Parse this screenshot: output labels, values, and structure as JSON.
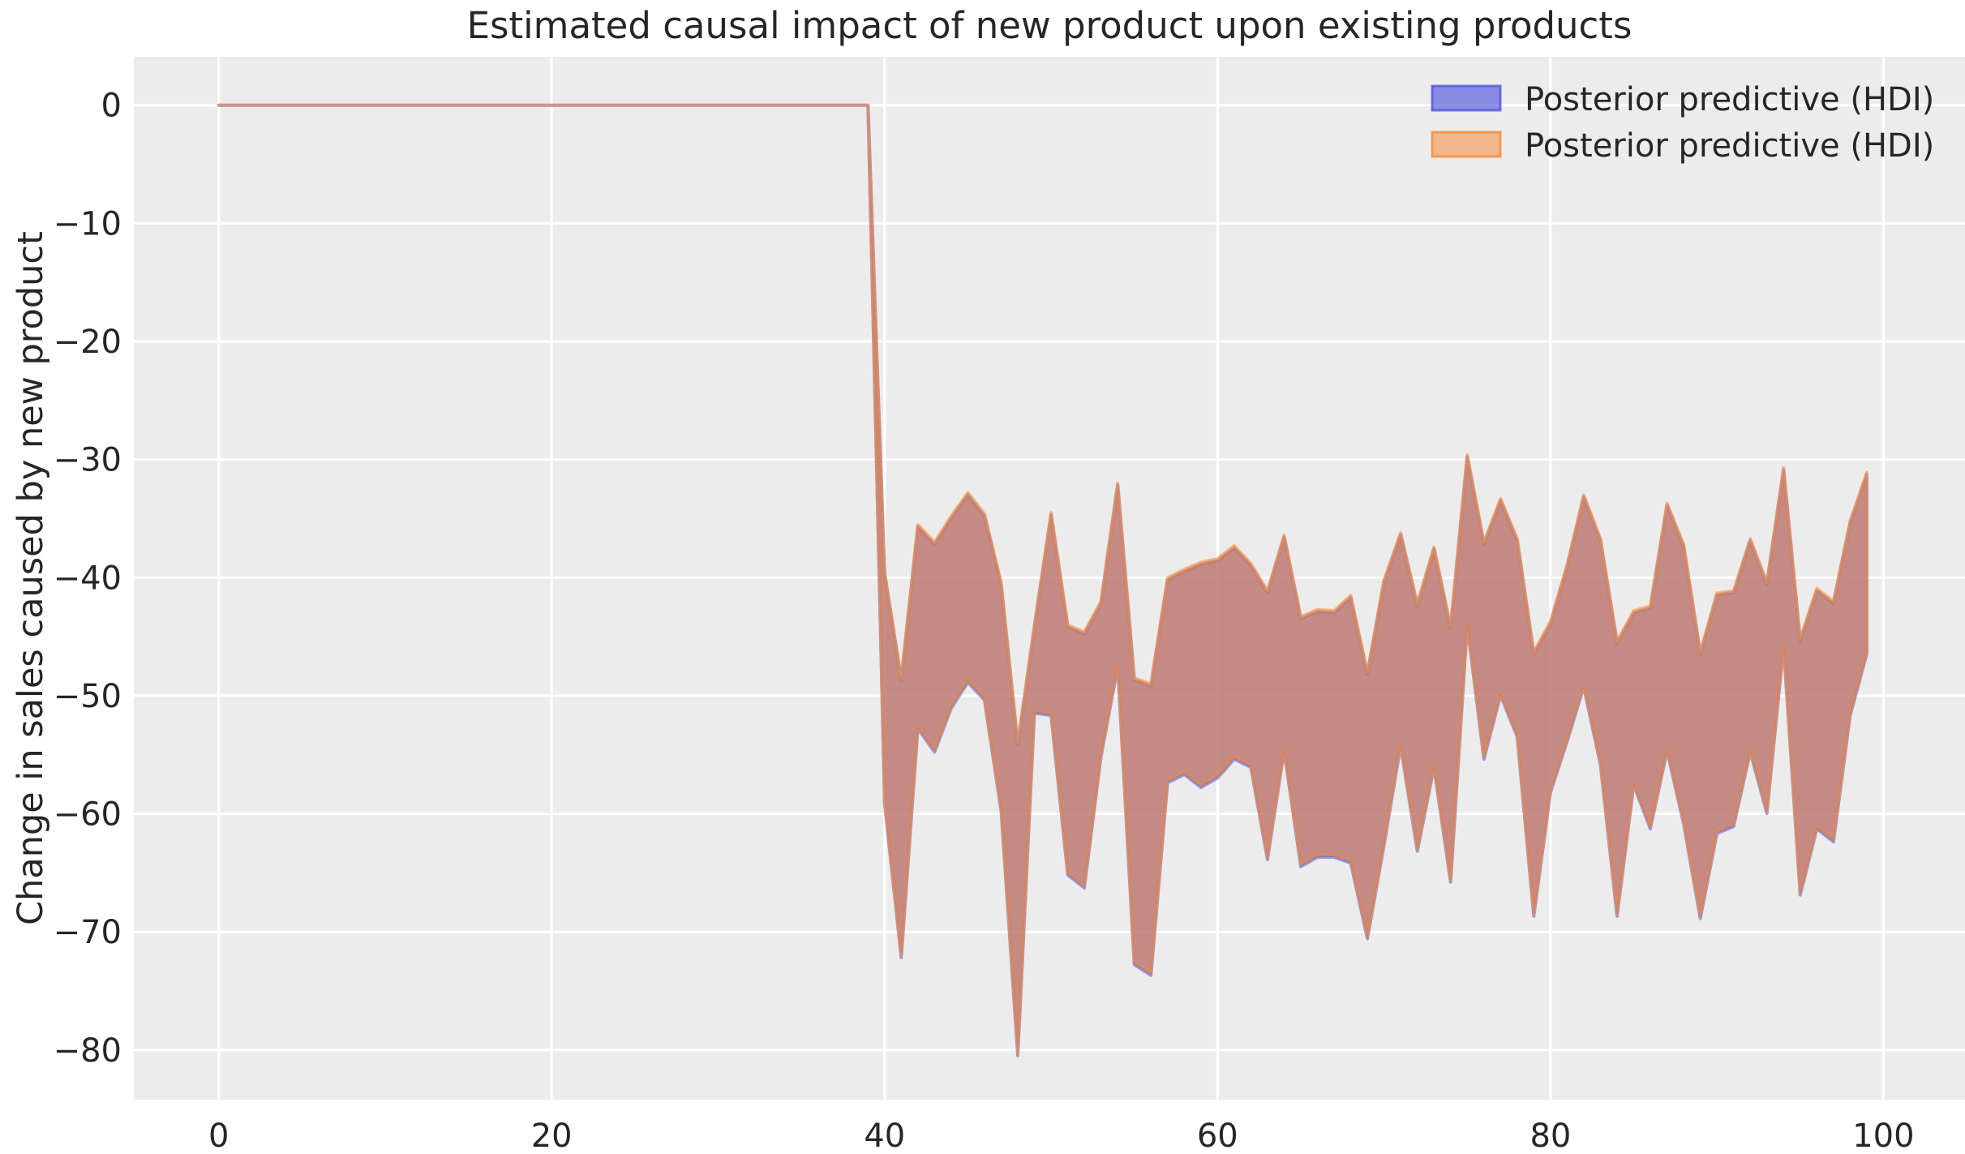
{
  "title": "Estimated causal impact of new product upon existing products",
  "ylabel": "Change in sales caused by new product",
  "xlabel": "",
  "legend": {
    "position": "upper right",
    "items": [
      {
        "label": "Posterior predictive (HDI)",
        "color": "#5158DC"
      },
      {
        "label": "Posterior predictive (HDI)",
        "color": "#F58A39"
      }
    ]
  },
  "colors": {
    "figure_background": "#FFFFFF",
    "axes_background": "#ECECEC",
    "gridline": "#FFFFFF",
    "text": "#262626",
    "hdi_blue": "#5158DC",
    "hdi_orange": "#F58A39",
    "band_overlap": "#C28889",
    "pre_period_line": "#C9928A"
  },
  "chart_data": {
    "type": "area",
    "title": "Estimated causal impact of new product upon existing products",
    "xlabel": "",
    "ylabel": "Change in sales caused by new product",
    "grid": true,
    "legend_position": "upper right",
    "treatment_time": 40,
    "xlim": [
      -5.1,
      104.9
    ],
    "ylim": [
      -84.2,
      4.1
    ],
    "xticks": [
      0,
      20,
      40,
      60,
      80,
      100
    ],
    "yticks": [
      0,
      -10,
      -20,
      -30,
      -40,
      -50,
      -60,
      -70,
      -80
    ],
    "xticklabels": [
      "0",
      "20",
      "40",
      "60",
      "80",
      "100"
    ],
    "yticklabels": [
      "0",
      "−10",
      "−20",
      "−30",
      "−40",
      "−50",
      "−60",
      "−70",
      "−80"
    ],
    "series": [
      {
        "name": "Posterior predictive (HDI)",
        "color": "#5158DC",
        "fill_opacity": 0.65,
        "stroke_opacity": 0.55
      },
      {
        "name": "Posterior predictive (HDI)",
        "color": "#F58A39",
        "fill_opacity": 0.55,
        "stroke_opacity": 0.55
      }
    ],
    "x": [
      0,
      1,
      2,
      3,
      4,
      5,
      6,
      7,
      8,
      9,
      10,
      11,
      12,
      13,
      14,
      15,
      16,
      17,
      18,
      19,
      20,
      21,
      22,
      23,
      24,
      25,
      26,
      27,
      28,
      29,
      30,
      31,
      32,
      33,
      34,
      35,
      36,
      37,
      38,
      39,
      40,
      41,
      42,
      43,
      44,
      45,
      46,
      47,
      48,
      49,
      50,
      51,
      52,
      53,
      54,
      55,
      56,
      57,
      58,
      59,
      60,
      61,
      62,
      63,
      64,
      65,
      66,
      67,
      68,
      69,
      70,
      71,
      72,
      73,
      74,
      75,
      76,
      77,
      78,
      79,
      80,
      81,
      82,
      83,
      84,
      85,
      86,
      87,
      88,
      89,
      90,
      91,
      92,
      93,
      94,
      95,
      96,
      97,
      98,
      99
    ],
    "hdi_upper": [
      0,
      0,
      0,
      0,
      0,
      0,
      0,
      0,
      0,
      0,
      0,
      0,
      0,
      0,
      0,
      0,
      0,
      0,
      0,
      0,
      0,
      0,
      0,
      0,
      0,
      0,
      0,
      0,
      0,
      0,
      0,
      0,
      0,
      0,
      0,
      0,
      0,
      0,
      0,
      0,
      -39.5,
      -48.5,
      -35.5,
      -37,
      -34.8,
      -32.8,
      -34.6,
      -40.4,
      -54,
      -44,
      -34.5,
      -44,
      -44.6,
      -42,
      -32,
      -48.5,
      -49,
      -40,
      -39.3,
      -38.7,
      -38.4,
      -37.3,
      -38.8,
      -41.1,
      -36.4,
      -43.3,
      -42.7,
      -42.8,
      -41.5,
      -48,
      -40.2,
      -36.2,
      -42.2,
      -37.4,
      -44.1,
      -29.6,
      -37,
      -33.3,
      -36.7,
      -46.3,
      -43.7,
      -38.9,
      -33,
      -36.7,
      -45.4,
      -42.8,
      -42.4,
      -33.7,
      -37.2,
      -46.3,
      -41.3,
      -41.1,
      -36.7,
      -40.4,
      -30.7,
      -45.2,
      -40.9,
      -42,
      -35.2,
      -31.1
    ],
    "hdi_lower": [
      0,
      0,
      0,
      0,
      0,
      0,
      0,
      0,
      0,
      0,
      0,
      0,
      0,
      0,
      0,
      0,
      0,
      0,
      0,
      0,
      0,
      0,
      0,
      0,
      0,
      0,
      0,
      0,
      0,
      0,
      0,
      0,
      0,
      0,
      0,
      0,
      0,
      0,
      0,
      0,
      -59,
      -72,
      -52.6,
      -54.6,
      -50.9,
      -48.7,
      -50.2,
      -59.6,
      -80.3,
      -51.3,
      -51.5,
      -65,
      -66.1,
      -55,
      -47.4,
      -72.6,
      -73.5,
      -57.2,
      -56.5,
      -57.6,
      -56.8,
      -55.2,
      -55.9,
      -63.7,
      -54.5,
      -64.3,
      -63.5,
      -63.5,
      -64,
      -70.4,
      -62.5,
      -54.1,
      -63,
      -55.9,
      -65.6,
      -43.9,
      -55.2,
      -49.8,
      -53.3,
      -68.5,
      -58,
      -53.7,
      -49.1,
      -55.7,
      -68.5,
      -57.4,
      -61.1,
      -54.5,
      -60.7,
      -68.7,
      -61.5,
      -60.9,
      -54.6,
      -59.8,
      -45.7,
      -66.7,
      -61.1,
      -62.2,
      -51.5,
      -46.3
    ]
  }
}
